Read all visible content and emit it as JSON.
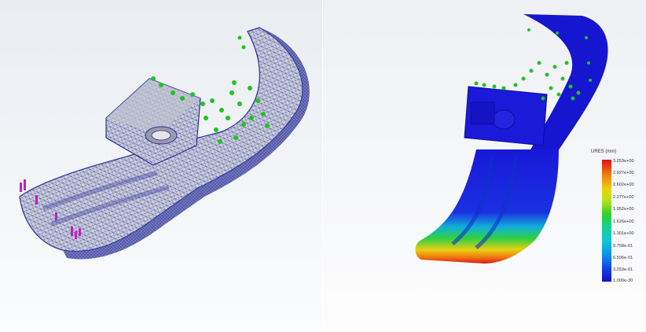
{
  "left_view": {
    "label": "mesh-view"
  },
  "right_view": {
    "label": "displacement-result-view"
  },
  "legend": {
    "title": "URES (mm)",
    "ticks": [
      "3.253e+00",
      "2.927e+00",
      "2.602e+00",
      "2.277e+00",
      "1.952e+00",
      "1.626e+00",
      "1.301e+00",
      "9.758e-01",
      "6.506e-01",
      "3.253e-01",
      "1.000e-30"
    ]
  },
  "colors": {
    "mesh_blue": "#2a2f9a",
    "mesh_fill": "#cfd2dc",
    "fixture_green": "#22c322",
    "load_magenta": "#c020c0",
    "result_blue": "#1818d8"
  }
}
